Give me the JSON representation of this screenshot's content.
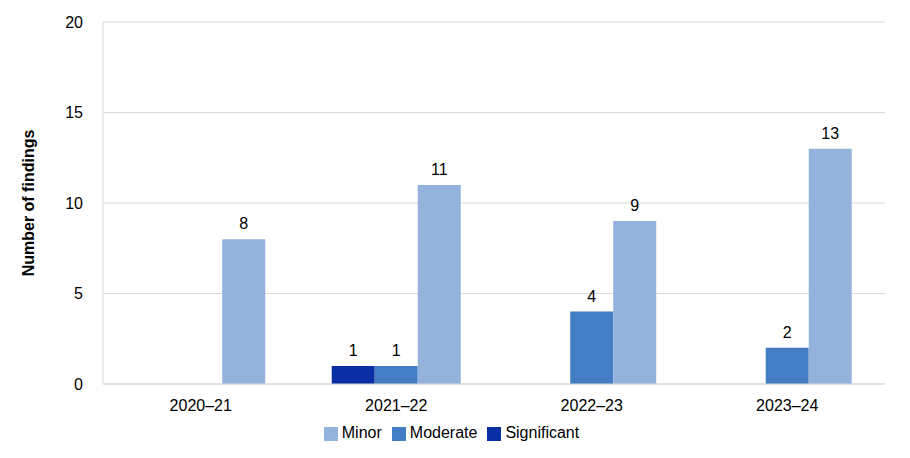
{
  "chart_data": {
    "type": "bar",
    "categories": [
      "2020–21",
      "2021–22",
      "2022–23",
      "2023–24"
    ],
    "series": [
      {
        "name": "Significant",
        "color": "#0a2ea4",
        "values": [
          0,
          1,
          0,
          0
        ]
      },
      {
        "name": "Moderate",
        "color": "#437dc3",
        "values": [
          0,
          1,
          4,
          2
        ]
      },
      {
        "name": "Minor",
        "color": "#93b3dc",
        "values": [
          8,
          11,
          9,
          13
        ]
      }
    ],
    "y_label": "Number of findings",
    "ylim": [
      0,
      20
    ],
    "yticks": [
      0,
      5,
      10,
      15,
      20
    ],
    "grid": true,
    "legend": "bottom",
    "data_labels": true
  }
}
